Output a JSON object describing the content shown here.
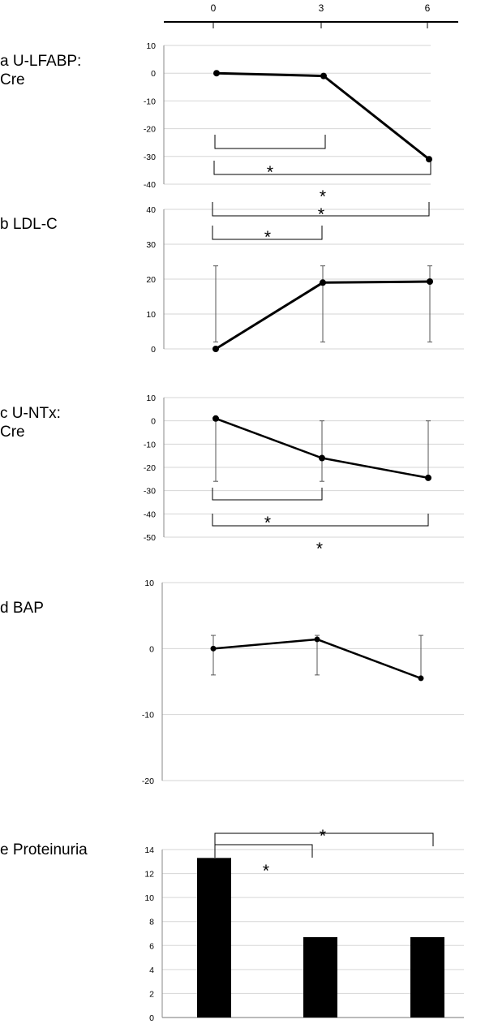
{
  "axis": {
    "ticks": [
      "0",
      "3",
      "6"
    ],
    "values": [
      0,
      3,
      6
    ]
  },
  "labels": {
    "a": [
      "a U-LFABP:",
      "Cre"
    ],
    "b": [
      "b LDL-C"
    ],
    "c": [
      "c U-NTx:",
      "Cre"
    ],
    "d": [
      "d BAP"
    ],
    "e": [
      "e Proteinuria"
    ]
  },
  "chart_data": [
    {
      "id": "a",
      "type": "line",
      "x": [
        0,
        3,
        6
      ],
      "values": [
        0,
        -1,
        -31
      ],
      "ylim": [
        -40,
        10
      ],
      "yticks": [
        10,
        0,
        -10,
        -20,
        -30,
        -40
      ],
      "grid": true,
      "color": "#000000",
      "significance": [
        {
          "from": 0,
          "to": 3,
          "label": ""
        },
        {
          "from": 0,
          "to": 6,
          "label": "*"
        },
        {
          "from": 0,
          "to": 6,
          "label": "*"
        }
      ]
    },
    {
      "id": "b",
      "type": "line",
      "x": [
        0,
        3,
        6
      ],
      "values": [
        0,
        19,
        19.3
      ],
      "error_low": [
        2,
        2,
        2
      ],
      "error_high": [
        23.8,
        23.8,
        23.8
      ],
      "ylim": [
        0,
        40
      ],
      "yticks": [
        40,
        30,
        20,
        10,
        0
      ],
      "grid": true,
      "color": "#000000",
      "significance": [
        {
          "from": 0,
          "to": 6,
          "label": "*"
        },
        {
          "from": 0,
          "to": 3,
          "label": "*"
        }
      ]
    },
    {
      "id": "c",
      "type": "line",
      "x": [
        0,
        3,
        6
      ],
      "values": [
        1,
        -16,
        -24.5
      ],
      "error_low": [
        -26,
        -26,
        -24.5
      ],
      "error_high": [
        1,
        0,
        0
      ],
      "ylim": [
        -50,
        10
      ],
      "yticks": [
        10,
        0,
        -10,
        -20,
        -30,
        -40,
        -50
      ],
      "grid": true,
      "color": "#000000",
      "significance": [
        {
          "from": 0,
          "to": 3,
          "label": "*"
        },
        {
          "from": 0,
          "to": 6,
          "label": "*"
        }
      ]
    },
    {
      "id": "d",
      "type": "line",
      "x": [
        0,
        3,
        6
      ],
      "values": [
        0,
        1.4,
        -4.5
      ],
      "error_low": [
        -4,
        -4,
        -4.5
      ],
      "error_high": [
        2,
        2,
        2
      ],
      "ylim": [
        -20,
        10
      ],
      "yticks": [
        10,
        0,
        -10,
        -20
      ],
      "grid": true,
      "color": "#000000",
      "significance": []
    },
    {
      "id": "e",
      "type": "bar",
      "categories": [
        "0",
        "3",
        "6"
      ],
      "values": [
        13.3,
        6.7,
        6.7
      ],
      "ylim": [
        0,
        14
      ],
      "yticks": [
        14,
        12,
        10,
        8,
        6,
        4,
        2,
        0
      ],
      "grid": true,
      "color": "#000000",
      "significance": [
        {
          "from": 0,
          "to": 6,
          "label": "*"
        },
        {
          "from": 0,
          "to": 3,
          "label": "*"
        }
      ]
    }
  ]
}
